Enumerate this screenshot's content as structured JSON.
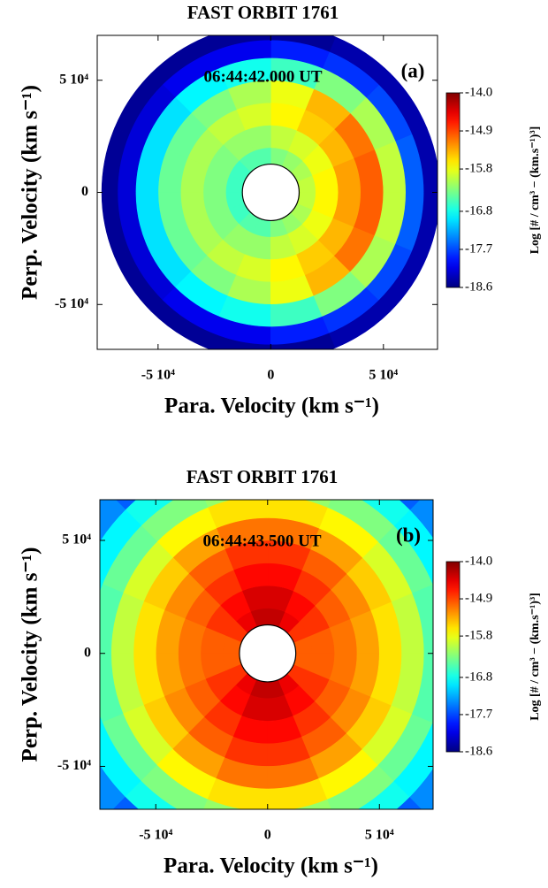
{
  "chart_data": [
    {
      "type": "polar_heatmap",
      "title": "FAST ORBIT 1761",
      "annotation": "06:44:42.000 UT",
      "panel_label": "(a)",
      "x_label": "Para. Velocity (km s⁻¹)",
      "y_label": "Perp. Velocity (km s⁻¹)",
      "colorbar_label": "Log [# / cm³ − (km.s⁻¹)³]",
      "colormap": "jet",
      "xlim": [
        -77000,
        74000
      ],
      "ylim": [
        -70000,
        70000
      ],
      "xticks": [
        {
          "value": -50000,
          "label": "-5 10⁴"
        },
        0,
        {
          "value": 50000,
          "label": "5 10⁴"
        }
      ],
      "yticks": [
        {
          "value": -50000,
          "label": "-5 10⁴"
        },
        0,
        {
          "value": 50000,
          "label": "5 10⁴"
        }
      ],
      "zlim": [
        -18.6,
        -14.0
      ],
      "zticks": [
        {
          "value": -14,
          "label": "-14.0"
        },
        -14.9,
        -15.8,
        -16.8,
        -17.7,
        -18.6
      ],
      "r_edges": [
        12600,
        20000,
        30000,
        40000,
        50000,
        60000,
        68000,
        75000
      ],
      "theta_edges": [
        0,
        22.5,
        45,
        67.5,
        90,
        112.5,
        135,
        157.5,
        180,
        202.5,
        225,
        247.5,
        270,
        292.5,
        315,
        337.5,
        360
      ],
      "z": [
        [
          -16.0,
          -16.1,
          -16.2,
          -16.3,
          -16.5,
          -16.5,
          -16.6,
          -16.6,
          -16.6,
          -16.6,
          -16.5,
          -16.5,
          -16.3,
          -16.2,
          -16.1,
          -16.0
        ],
        [
          -15.7,
          -15.8,
          -15.9,
          -16.0,
          -16.2,
          -16.2,
          -16.3,
          -16.3,
          -16.3,
          -16.3,
          -16.2,
          -16.2,
          -16.0,
          -15.9,
          -15.8,
          -15.7
        ],
        [
          -15.3,
          -15.4,
          -15.5,
          -15.7,
          -15.9,
          -16.0,
          -16.1,
          -16.1,
          -16.1,
          -16.1,
          -16.0,
          -15.9,
          -15.7,
          -15.5,
          -15.4,
          -15.3
        ],
        [
          -15.0,
          -15.1,
          -15.4,
          -15.8,
          -16.1,
          -16.3,
          -16.4,
          -16.4,
          -16.4,
          -16.4,
          -16.3,
          -16.1,
          -15.8,
          -15.4,
          -15.1,
          -15.0
        ],
        [
          -16.0,
          -16.1,
          -16.3,
          -16.6,
          -16.8,
          -16.9,
          -17.0,
          -17.0,
          -17.0,
          -17.0,
          -16.9,
          -16.8,
          -16.6,
          -16.3,
          -16.1,
          -16.0
        ],
        [
          -17.6,
          -17.7,
          -17.8,
          -17.9,
          -18.1,
          -18.1,
          -18.2,
          -18.2,
          -18.2,
          -18.2,
          -18.1,
          -18.1,
          -17.9,
          -17.8,
          -17.7,
          -17.6
        ],
        [
          -18.4,
          -18.4,
          -18.4,
          -18.5,
          -18.5,
          -18.5,
          -18.5,
          -18.5,
          -18.5,
          -18.5,
          -18.5,
          -18.5,
          -18.5,
          -18.4,
          -18.4,
          -18.4
        ]
      ]
    },
    {
      "type": "polar_heatmap",
      "title": "FAST ORBIT 1761",
      "annotation": "06:44:43.500 UT",
      "panel_label": "(b)",
      "x_label": "Para. Velocity (km s⁻¹)",
      "y_label": "Perp. Velocity (km s⁻¹)",
      "colorbar_label": "Log [# / cm³ − (km.s⁻¹)³]",
      "colormap": "jet",
      "xlim": [
        -75000,
        74000
      ],
      "ylim": [
        -69000,
        68000
      ],
      "xticks": [
        {
          "value": -50000,
          "label": "-5 10⁴"
        },
        0,
        {
          "value": 50000,
          "label": "5 10⁴"
        }
      ],
      "yticks": [
        {
          "value": -50000,
          "label": "-5 10⁴"
        },
        0,
        {
          "value": 50000,
          "label": "5 10⁴"
        }
      ],
      "zlim": [
        -18.6,
        -14.0
      ],
      "zticks": [
        {
          "value": -14,
          "label": "-14.0"
        },
        -14.9,
        -15.8,
        -16.8,
        -17.7,
        -18.6
      ],
      "r_edges": [
        12600,
        20000,
        30000,
        40000,
        50000,
        60000,
        70000,
        80000,
        90000,
        105000
      ],
      "theta_edges": [
        0,
        22.5,
        45,
        67.5,
        90,
        112.5,
        135,
        157.5,
        180,
        202.5,
        225,
        247.5,
        270,
        292.5,
        315,
        337.5,
        360
      ],
      "z": [
        [
          -15.0,
          -14.8,
          -14.5,
          -14.3,
          -14.3,
          -14.5,
          -14.8,
          -15.0,
          -15.0,
          -14.8,
          -14.5,
          -14.3,
          -14.3,
          -14.5,
          -14.8,
          -15.0
        ],
        [
          -15.0,
          -14.8,
          -14.6,
          -14.4,
          -14.4,
          -14.6,
          -14.8,
          -15.0,
          -15.0,
          -14.8,
          -14.6,
          -14.4,
          -14.4,
          -14.6,
          -14.8,
          -15.0
        ],
        [
          -15.1,
          -15.0,
          -14.8,
          -14.6,
          -14.6,
          -14.8,
          -15.0,
          -15.1,
          -15.1,
          -15.0,
          -14.8,
          -14.6,
          -14.6,
          -14.8,
          -15.0,
          -15.1
        ],
        [
          -15.3,
          -15.2,
          -15.0,
          -14.8,
          -14.8,
          -15.0,
          -15.2,
          -15.3,
          -15.3,
          -15.2,
          -15.0,
          -14.8,
          -14.8,
          -15.0,
          -15.2,
          -15.3
        ],
        [
          -15.6,
          -15.5,
          -15.3,
          -15.1,
          -15.1,
          -15.3,
          -15.5,
          -15.6,
          -15.6,
          -15.5,
          -15.3,
          -15.1,
          -15.1,
          -15.3,
          -15.5,
          -15.6
        ],
        [
          -16.0,
          -15.9,
          -15.7,
          -15.6,
          -15.6,
          -15.7,
          -15.9,
          -16.0,
          -16.0,
          -15.9,
          -15.7,
          -15.6,
          -15.6,
          -15.7,
          -15.9,
          -16.0
        ],
        [
          -16.5,
          -16.4,
          -16.3,
          -16.2,
          -16.2,
          -16.3,
          -16.4,
          -16.5,
          -16.5,
          -16.4,
          -16.3,
          -16.2,
          -16.2,
          -16.3,
          -16.4,
          -16.5
        ],
        [
          -16.9,
          -16.9,
          -16.8,
          -16.8,
          -16.8,
          -16.8,
          -16.9,
          -16.9,
          -16.9,
          -16.9,
          -16.8,
          -16.8,
          -16.8,
          -16.8,
          -16.9,
          -16.9
        ],
        [
          -17.0,
          -17.4,
          -17.6,
          -17.3,
          -17.3,
          -17.6,
          -17.4,
          -17.0,
          -17.0,
          -17.4,
          -17.6,
          -17.3,
          -17.3,
          -17.6,
          -17.4,
          -17.0
        ]
      ]
    }
  ]
}
